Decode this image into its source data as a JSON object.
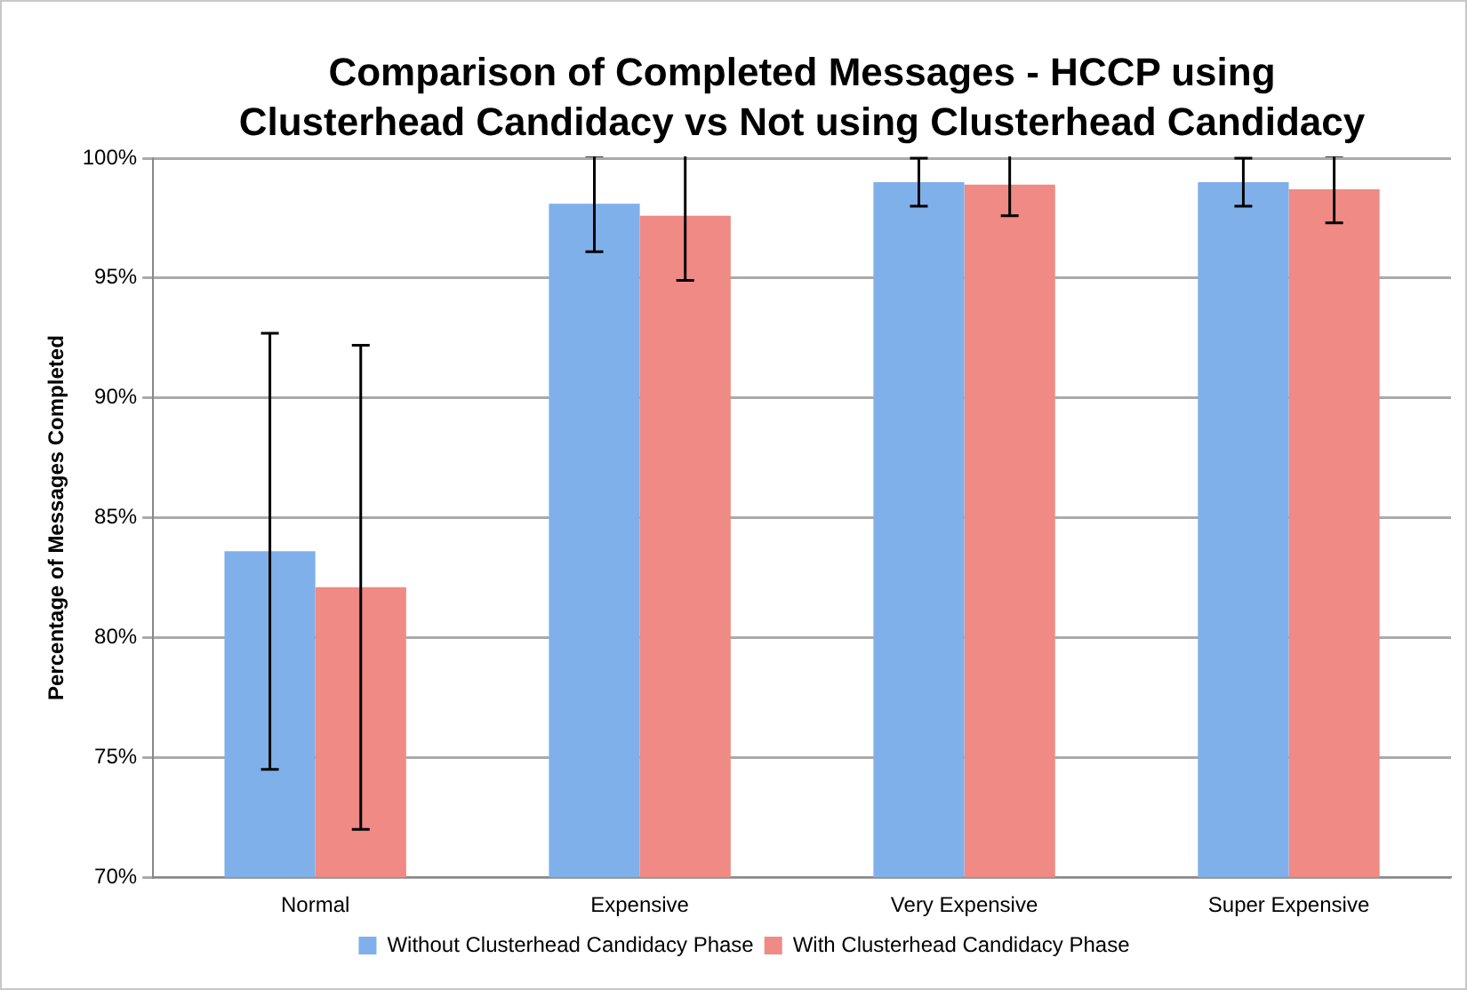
{
  "chart_data": {
    "type": "bar",
    "title": "Comparison of Completed Messages - HCCP using Clusterhead Candidacy vs Not using Clusterhead Candidacy",
    "ylabel": "Percentage of Messages Completed",
    "categories": [
      "Normal",
      "Expensive",
      "Very Expensive",
      "Super Expensive"
    ],
    "series": [
      {
        "name": "Without Clusterhead Candidacy Phase",
        "color": "#7fb0ea",
        "values": [
          83.6,
          98.1,
          99.0,
          99.0
        ],
        "errors": [
          9.1,
          2.0,
          1.0,
          1.0
        ]
      },
      {
        "name": "With Clusterhead Candidacy Phase",
        "color": "#ef8a84",
        "values": [
          82.1,
          97.6,
          98.9,
          98.7
        ],
        "errors": [
          10.1,
          2.7,
          1.3,
          1.4
        ]
      }
    ],
    "ylim": [
      70,
      100
    ],
    "yticks": [
      {
        "value": 70,
        "label": "70%"
      },
      {
        "value": 75,
        "label": "75%"
      },
      {
        "value": 80,
        "label": "80%"
      },
      {
        "value": 85,
        "label": "85%"
      },
      {
        "value": 90,
        "label": "90%"
      },
      {
        "value": 95,
        "label": "95%"
      },
      {
        "value": 100,
        "label": "100%"
      }
    ],
    "grid": "y",
    "legend": "bottom"
  }
}
